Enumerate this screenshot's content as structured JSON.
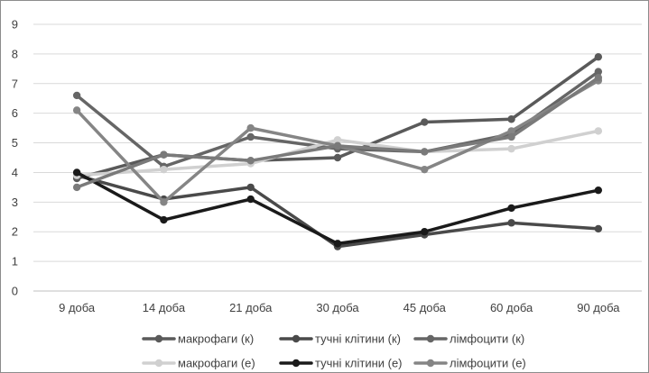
{
  "chart_data": {
    "type": "line",
    "title": "",
    "xlabel": "",
    "ylabel": "",
    "categories": [
      "9 доба",
      "14 доба",
      "21 доба",
      "30 доба",
      "45 доба",
      "60 доба",
      "90 доба"
    ],
    "ylim": [
      0,
      9
    ],
    "yticks": [
      "0",
      "1",
      "2",
      "3",
      "4",
      "5",
      "6",
      "7",
      "8",
      "9"
    ],
    "grid": true,
    "legend_position": "bottom",
    "series": [
      {
        "name": "макрофаги (к)",
        "color": "#5a5a5a",
        "values": [
          3.8,
          4.6,
          4.4,
          4.5,
          5.7,
          5.8,
          7.9
        ]
      },
      {
        "name": "тучні клітини (к)",
        "color": "#4a4a4a",
        "values": [
          3.9,
          3.1,
          3.5,
          1.5,
          1.9,
          2.3,
          2.1
        ]
      },
      {
        "name": "лімфоцити (к)",
        "color": "#666666",
        "values": [
          6.6,
          4.2,
          5.2,
          4.8,
          4.7,
          5.3,
          7.4
        ]
      },
      {
        "name": "макрофаги (е)",
        "color": "#d0d0d0",
        "values": [
          3.9,
          4.1,
          4.3,
          5.1,
          4.7,
          4.8,
          5.4
        ]
      },
      {
        "name": "тучні клітини (е)",
        "color": "#1a1a1a",
        "values": [
          4.0,
          2.4,
          3.1,
          1.6,
          2.0,
          2.8,
          3.4
        ]
      },
      {
        "name": "лімфоцити (е)",
        "color": "#858585",
        "values": [
          6.1,
          3.0,
          5.5,
          4.9,
          4.1,
          5.4,
          7.1
        ]
      },
      {
        "name": "",
        "color": "#7a7a7a",
        "values": [
          3.5,
          4.6,
          4.4,
          4.9,
          4.7,
          5.2,
          7.2
        ]
      }
    ]
  }
}
